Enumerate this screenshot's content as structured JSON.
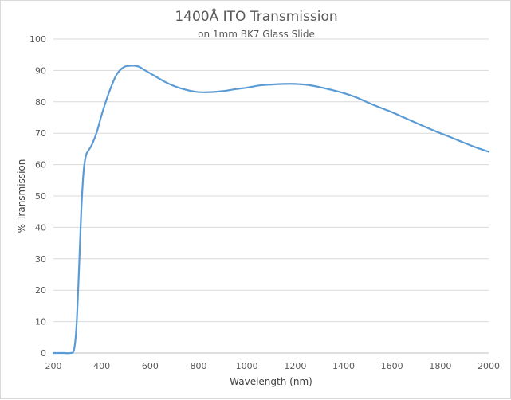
{
  "chart_data": {
    "type": "line",
    "title": "1400Å ITO Transmission",
    "subtitle": "on 1mm BK7 Glass Slide",
    "xlabel": "Wavelength (nm)",
    "ylabel": "% Transmission",
    "xlim": [
      200,
      2000
    ],
    "ylim": [
      0,
      100
    ],
    "x_ticks": [
      200,
      400,
      600,
      800,
      1000,
      1200,
      1400,
      1600,
      1800,
      2000
    ],
    "y_ticks": [
      0,
      10,
      20,
      30,
      40,
      50,
      60,
      70,
      80,
      90,
      100
    ],
    "grid": "horizontal",
    "line_color": "#5b9bd5",
    "series": [
      {
        "x": [
          200,
          240,
          270,
          285,
          295,
          305,
          315,
          325,
          335,
          345,
          360,
          380,
          400,
          430,
          460,
          490,
          520,
          550,
          580,
          620,
          660,
          700,
          750,
          800,
          850,
          900,
          950,
          1000,
          1050,
          1100,
          1150,
          1200,
          1250,
          1300,
          1350,
          1400,
          1450,
          1500,
          1550,
          1600,
          1650,
          1700,
          1750,
          1800,
          1850,
          1900,
          1950,
          2000
        ],
        "y": [
          0,
          0,
          0,
          1,
          8,
          25,
          45,
          58,
          63,
          64.5,
          66.5,
          70.5,
          76,
          83,
          88.5,
          91,
          91.5,
          91.3,
          90,
          88.2,
          86.4,
          85,
          83.8,
          83.1,
          83.1,
          83.4,
          84,
          84.5,
          85.2,
          85.5,
          85.7,
          85.7,
          85.4,
          84.7,
          83.8,
          82.8,
          81.5,
          79.8,
          78.2,
          76.7,
          75,
          73.3,
          71.6,
          70,
          68.5,
          66.9,
          65.4,
          64.1
        ]
      }
    ]
  }
}
